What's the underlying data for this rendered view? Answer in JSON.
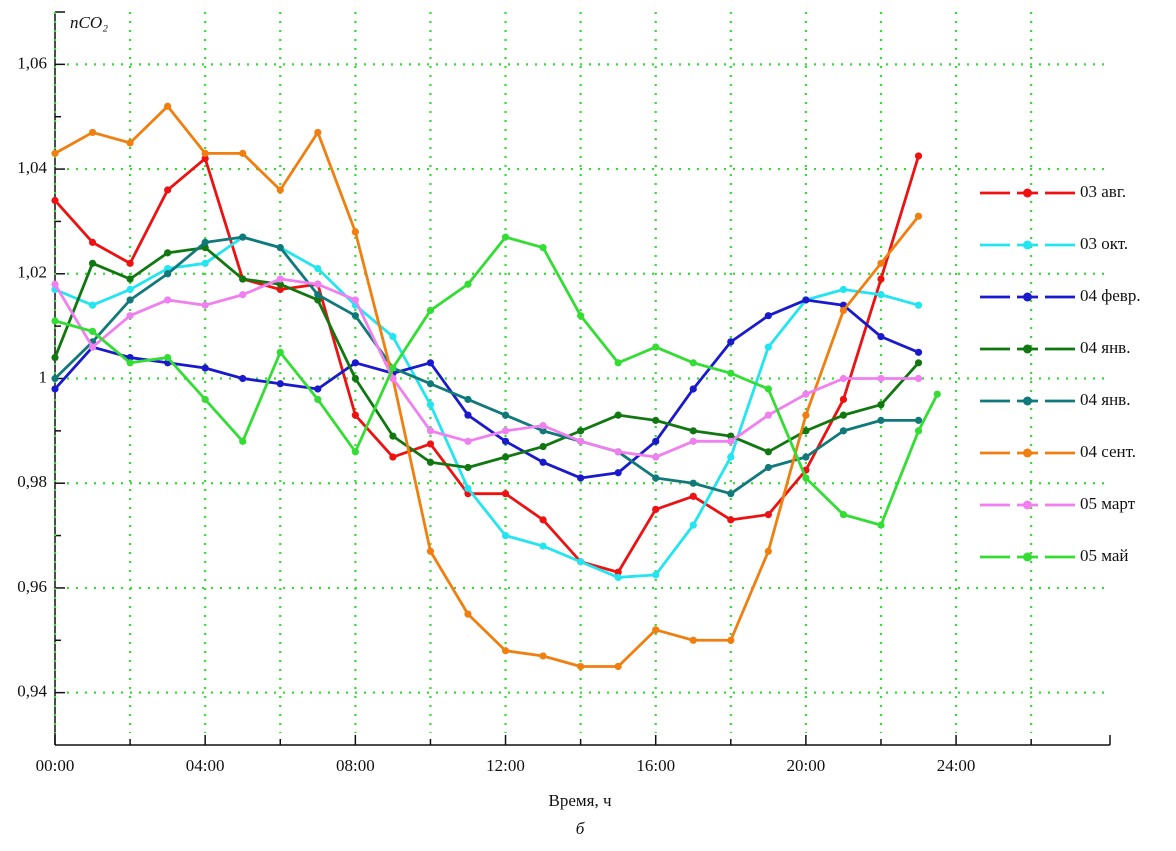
{
  "chart_data": {
    "type": "line",
    "y_label": "nCO₂",
    "x_label": "Время, ч",
    "caption": "б",
    "x": [
      0,
      1,
      2,
      3,
      4,
      5,
      6,
      7,
      8,
      9,
      10,
      11,
      12,
      13,
      14,
      15,
      16,
      17,
      18,
      19,
      20,
      21,
      22,
      23,
      23.5
    ],
    "xlim": [
      0,
      28.1
    ],
    "ylim": [
      0.93,
      1.07
    ],
    "xticks": [
      {
        "value": 0,
        "label": "00:00"
      },
      {
        "value": 4,
        "label": "04:00"
      },
      {
        "value": 8,
        "label": "08:00"
      },
      {
        "value": 12,
        "label": "12:00"
      },
      {
        "value": 16,
        "label": "16:00"
      },
      {
        "value": 20,
        "label": "20:00"
      },
      {
        "value": 24,
        "label": "24:00"
      }
    ],
    "xminorticks": [
      2,
      6,
      10,
      14,
      18,
      22,
      26
    ],
    "yticks": [
      {
        "value": 0.94,
        "label": "0,94"
      },
      {
        "value": 0.96,
        "label": "0,96"
      },
      {
        "value": 0.98,
        "label": "0,98"
      },
      1,
      {
        "value": 1.02,
        "label": "1,02"
      },
      {
        "value": 1.04,
        "label": "1,04"
      },
      {
        "value": 1.06,
        "label": "1,06"
      }
    ],
    "yminorticks": [
      0.95,
      0.97,
      0.99,
      1.01,
      1.03,
      1.05
    ],
    "grid": true,
    "legend": "right",
    "series": [
      {
        "name": "03 авг.",
        "color": "#ee1111",
        "values": [
          1.034,
          1.026,
          1.022,
          1.036,
          1.042,
          1.019,
          1.017,
          1.018,
          0.993,
          0.985,
          0.9875,
          0.978,
          0.978,
          0.973,
          0.965,
          0.963,
          0.975,
          0.9775,
          0.973,
          0.974,
          0.9825,
          0.996,
          1.019,
          1.0425,
          null
        ]
      },
      {
        "name": "03 окт.",
        "color": "#22e5ef",
        "values": [
          1.017,
          1.014,
          1.017,
          1.021,
          1.022,
          1.027,
          1.025,
          1.021,
          1.014,
          1.008,
          0.995,
          0.979,
          0.97,
          0.968,
          0.965,
          0.962,
          0.9625,
          0.972,
          0.985,
          1.006,
          1.015,
          1.017,
          1.016,
          1.014,
          null
        ]
      },
      {
        "name": "04 февр.",
        "color": "#1a1acc",
        "values": [
          0.998,
          1.006,
          1.004,
          1.003,
          1.002,
          1.0,
          0.999,
          0.998,
          1.003,
          1.001,
          1.003,
          0.993,
          0.988,
          0.984,
          0.981,
          0.982,
          0.988,
          0.998,
          1.007,
          1.012,
          1.015,
          1.014,
          1.008,
          1.005,
          null
        ]
      },
      {
        "name": "04 янв.",
        "color": "#117711",
        "values": [
          1.004,
          1.022,
          1.019,
          1.024,
          1.025,
          1.019,
          1.018,
          1.015,
          1.0,
          0.989,
          0.984,
          0.983,
          0.985,
          0.987,
          0.99,
          0.993,
          0.992,
          0.99,
          0.989,
          0.986,
          0.99,
          0.993,
          0.995,
          1.003,
          null
        ]
      },
      {
        "name": "04 янв.",
        "color": "#11797a",
        "values": [
          1.0,
          1.007,
          1.015,
          1.02,
          1.026,
          1.027,
          1.025,
          1.016,
          1.012,
          1.002,
          0.999,
          0.996,
          0.993,
          0.99,
          0.988,
          0.986,
          0.981,
          0.98,
          0.978,
          0.983,
          0.985,
          0.99,
          0.992,
          0.992,
          null
        ]
      },
      {
        "name": "04 сент.",
        "color": "#f07f10",
        "values": [
          1.043,
          1.047,
          1.045,
          1.052,
          1.043,
          1.043,
          1.036,
          1.047,
          1.028,
          1.0,
          0.967,
          0.955,
          0.948,
          0.947,
          0.945,
          0.945,
          0.952,
          0.95,
          0.95,
          0.967,
          0.993,
          1.013,
          1.022,
          1.031,
          null
        ]
      },
      {
        "name": "05 март",
        "color": "#f080f0",
        "values": [
          1.018,
          1.006,
          1.012,
          1.015,
          1.014,
          1.016,
          1.019,
          1.018,
          1.015,
          1.0,
          0.99,
          0.988,
          0.99,
          0.991,
          0.988,
          0.986,
          0.985,
          0.988,
          0.988,
          0.993,
          0.997,
          1.0,
          1.0,
          1.0,
          null
        ]
      },
      {
        "name": "05 май",
        "color": "#33dd33",
        "values": [
          1.011,
          1.009,
          1.003,
          1.004,
          0.996,
          0.988,
          1.005,
          0.996,
          0.986,
          1.002,
          1.013,
          1.018,
          1.027,
          1.025,
          1.012,
          1.003,
          1.006,
          1.003,
          1.001,
          0.998,
          0.981,
          0.974,
          0.972,
          0.99,
          0.997
        ]
      }
    ]
  }
}
